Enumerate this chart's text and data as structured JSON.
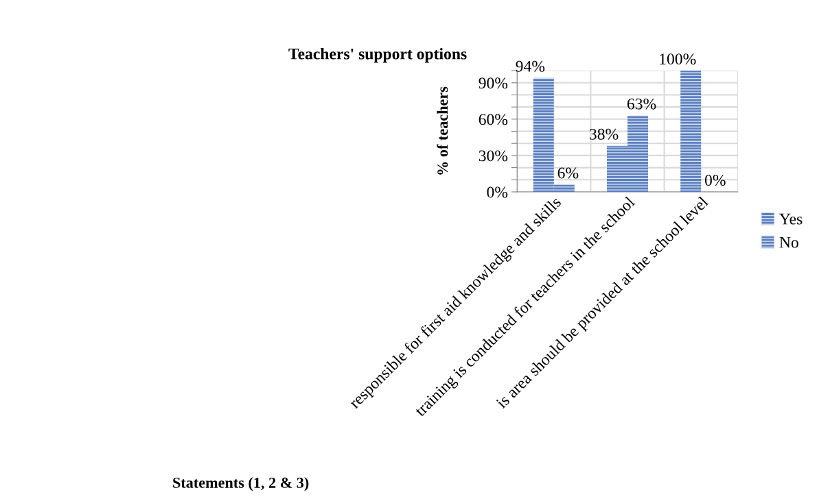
{
  "chart_data": {
    "type": "bar",
    "title": "Teachers' support options",
    "xlabel": "Statements (1, 2 & 3)",
    "ylabel": "% of teachers",
    "categories": [
      "responsible for first aid knowledge and skills",
      "training is conducted for teachers in the school",
      "is area should be provided at the school level"
    ],
    "series": [
      {
        "name": "Yes",
        "color": "#5a7fbf",
        "values": [
          94,
          38,
          100
        ],
        "value_labels": [
          "94%",
          "38%",
          "100%"
        ]
      },
      {
        "name": "No",
        "color": "#5a7fbf",
        "values": [
          6,
          63,
          0
        ],
        "value_labels": [
          "6%",
          "63%",
          "0%"
        ]
      }
    ],
    "ylim": [
      0,
      100
    ],
    "yticks": [
      {
        "value": 0,
        "label": "0%"
      },
      {
        "value": 10,
        "label": null
      },
      {
        "value": 20,
        "label": null
      },
      {
        "value": 30,
        "label": "30%"
      },
      {
        "value": 40,
        "label": null
      },
      {
        "value": 50,
        "label": null
      },
      {
        "value": 60,
        "label": "60%"
      },
      {
        "value": 70,
        "label": null
      },
      {
        "value": 80,
        "label": null
      },
      {
        "value": 90,
        "label": "90%"
      },
      {
        "value": 100,
        "label": null
      }
    ],
    "grid": true,
    "legend": "right"
  }
}
